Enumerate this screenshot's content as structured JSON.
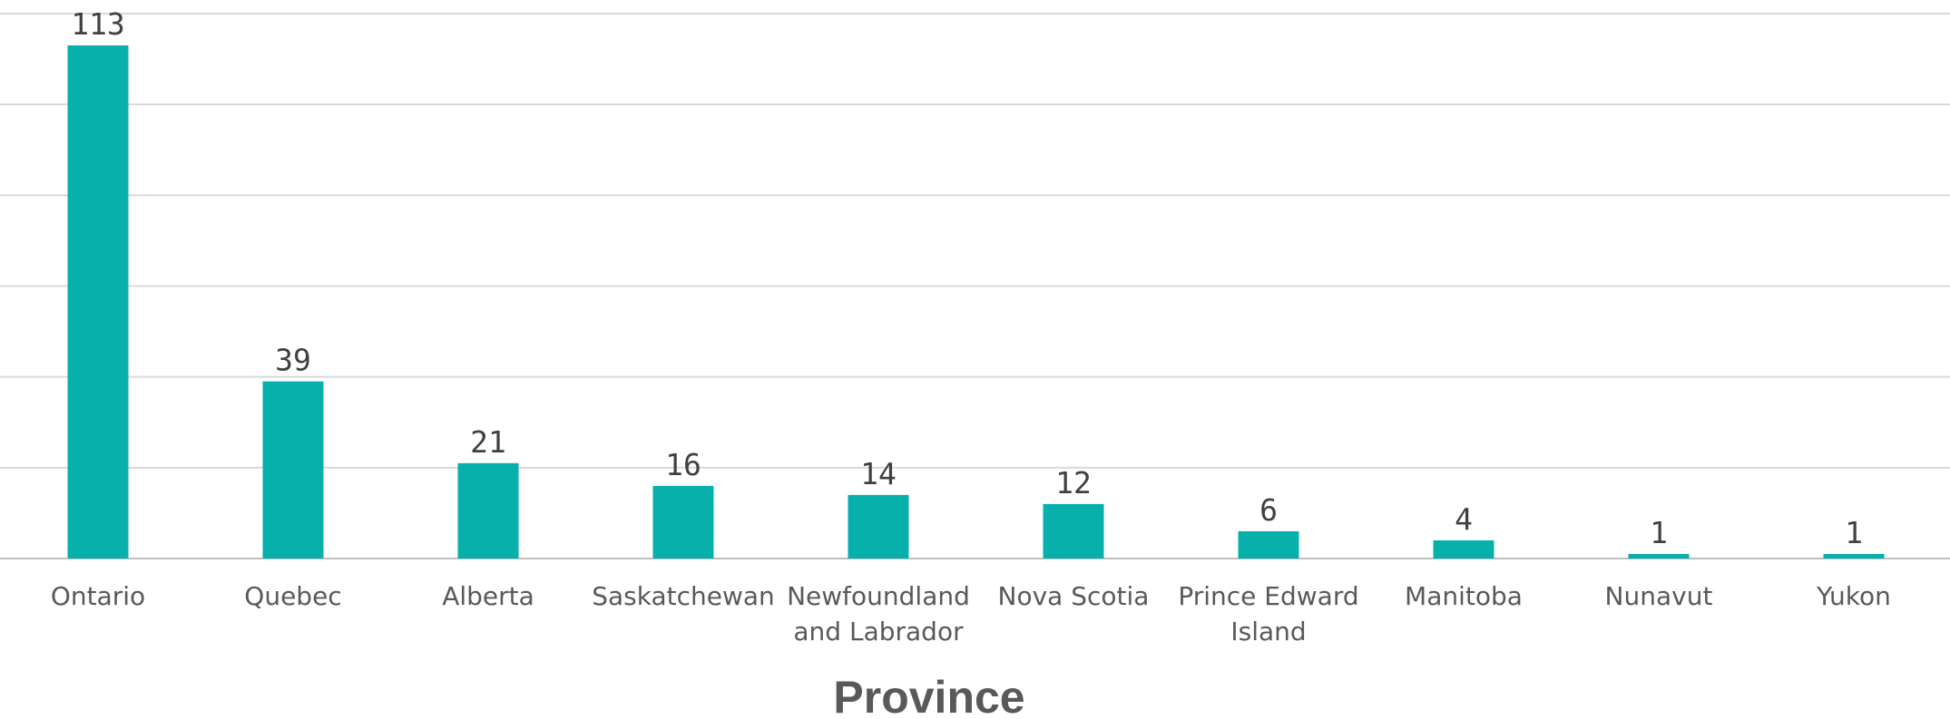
{
  "chart_data": {
    "type": "bar",
    "categories": [
      [
        "Ontario"
      ],
      [
        "Quebec"
      ],
      [
        "Alberta"
      ],
      [
        "Saskatchewan"
      ],
      [
        "Newfoundland",
        "and Labrador"
      ],
      [
        "Nova Scotia"
      ],
      [
        "Prince Edward",
        "Island"
      ],
      [
        "Manitoba"
      ],
      [
        "Nunavut"
      ],
      [
        "Yukon"
      ]
    ],
    "values": [
      113,
      39,
      21,
      16,
      14,
      12,
      6,
      4,
      1,
      1
    ],
    "title": "",
    "xlabel": "Province",
    "ylabel": "",
    "ylim": [
      0,
      120
    ],
    "grid": true,
    "legend": "none",
    "colors": {
      "bar": "#08B0AC",
      "grid": "#D9D9D9",
      "axis": "#BFBFBF"
    }
  }
}
